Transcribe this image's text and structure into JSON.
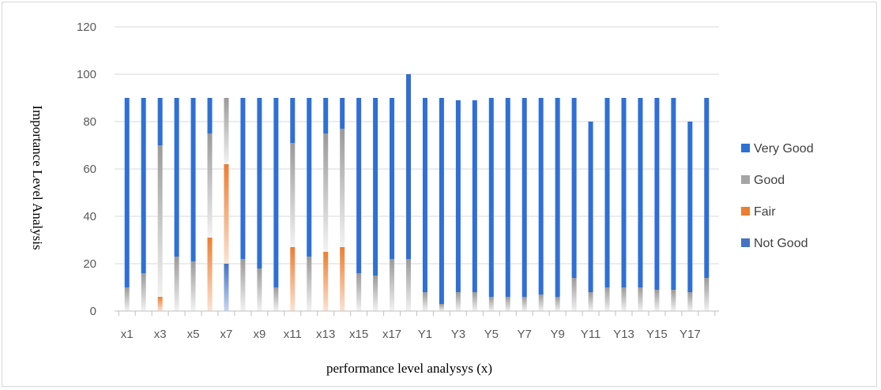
{
  "chart_data": {
    "type": "bar",
    "stacked": true,
    "xlabel": "performance level analysys (x)",
    "ylabel": "Importance Level Analysis",
    "ylim": [
      0,
      120
    ],
    "yticks": [
      0,
      20,
      40,
      60,
      80,
      100,
      120
    ],
    "grid": true,
    "legend_position": "right",
    "categories": [
      "x1",
      "x2",
      "x3",
      "x4",
      "x5",
      "x6",
      "x7",
      "x8",
      "x9",
      "x10",
      "x11",
      "x12",
      "x13",
      "x14",
      "x15",
      "x16",
      "x17",
      "x18",
      "Y1",
      "Y2",
      "Y3",
      "Y4",
      "Y5",
      "Y6",
      "Y7",
      "Y8",
      "Y9",
      "Y10",
      "Y11",
      "Y12",
      "Y13",
      "Y14",
      "Y15",
      "Y16",
      "Y17",
      "Y18"
    ],
    "visible_category_labels": [
      "x1",
      "x3",
      "x5",
      "x7",
      "x9",
      "x11",
      "x13",
      "x15",
      "x17",
      "Y1",
      "Y3",
      "Y5",
      "Y7",
      "Y9",
      "Y11",
      "Y13",
      "Y15",
      "Y17"
    ],
    "series": [
      {
        "name": "Not Good",
        "color": "#4472c4",
        "values": [
          0,
          0,
          0,
          0,
          0,
          0,
          20,
          0,
          0,
          0,
          0,
          0,
          0,
          0,
          0,
          0,
          0,
          0,
          0,
          0,
          0,
          0,
          0,
          0,
          0,
          0,
          0,
          0,
          0,
          0,
          0,
          0,
          0,
          0,
          0,
          0
        ]
      },
      {
        "name": "Fair",
        "color": "#ed7d31",
        "values": [
          0,
          0,
          6,
          0,
          0,
          31,
          42,
          0,
          0,
          0,
          27,
          0,
          25,
          27,
          0,
          0,
          0,
          0,
          0,
          0,
          0,
          0,
          0,
          0,
          0,
          0,
          0,
          0,
          0,
          0,
          0,
          0,
          0,
          0,
          0,
          0
        ]
      },
      {
        "name": "Good",
        "color": "#a5a5a5",
        "values": [
          10,
          16,
          64,
          23,
          21,
          44,
          28,
          22,
          18,
          10,
          44,
          23,
          50,
          50,
          16,
          15,
          22,
          22,
          8,
          3,
          8,
          8,
          6,
          6,
          6,
          7,
          6,
          14,
          8,
          10,
          10,
          10,
          9,
          9,
          8,
          14
        ]
      },
      {
        "name": "Very Good",
        "color": "#2f6fd6",
        "values": [
          80,
          74,
          20,
          67,
          69,
          15,
          0,
          68,
          72,
          80,
          19,
          67,
          15,
          13,
          74,
          75,
          68,
          78,
          82,
          87,
          81,
          81,
          84,
          84,
          84,
          83,
          84,
          76,
          72,
          80,
          80,
          80,
          81,
          81,
          72,
          76
        ]
      }
    ],
    "legend_order": [
      "Very Good",
      "Good",
      "Fair",
      "Not Good"
    ]
  }
}
